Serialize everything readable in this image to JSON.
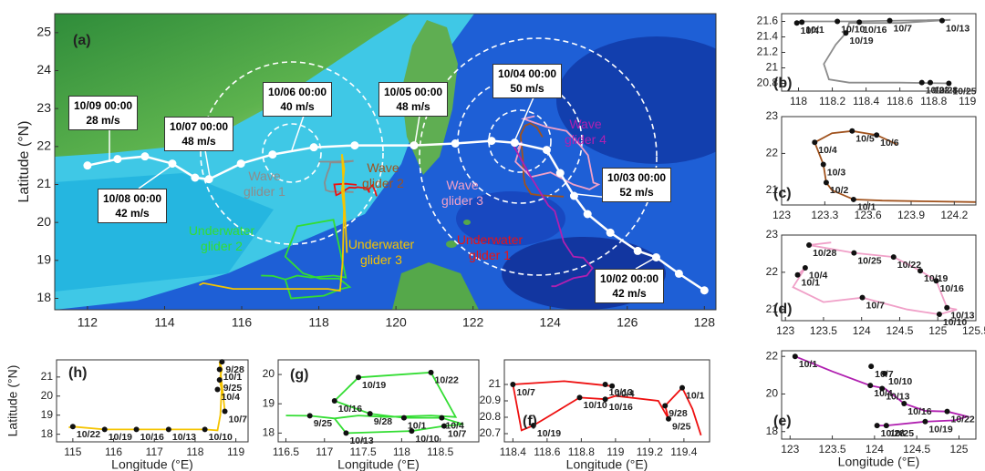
{
  "chart_data": [
    {
      "type": "map",
      "label": "(a)",
      "ylabel": "Latitude (°N)",
      "xlim": [
        111.15,
        128.3
      ],
      "xticks": [
        112,
        114,
        116,
        118,
        120,
        122,
        124,
        126,
        128
      ],
      "ylim": [
        17.7,
        25.5
      ],
      "yticks": [
        18,
        19,
        20,
        21,
        22,
        23,
        24,
        25
      ],
      "track": {
        "x": [
          112,
          112.78,
          113.49,
          114.2,
          114.79,
          115.15,
          115.98,
          116.8,
          117.87,
          118.93,
          120.47,
          121.54,
          122.48,
          123.08,
          123.91,
          124.26,
          124.62,
          124.97,
          125.56,
          126.27,
          126.75,
          127.34,
          128.0
        ],
        "y": [
          21.5,
          21.67,
          21.74,
          21.55,
          21.18,
          21.14,
          21.55,
          21.79,
          21.98,
          22.03,
          22.03,
          22.08,
          22.15,
          22.1,
          21.91,
          21.3,
          20.7,
          20.22,
          19.73,
          19.25,
          19.08,
          18.65,
          18.21
        ]
      },
      "annotations": [
        {
          "time": "10/09 00:00",
          "speed": "28 m/s"
        },
        {
          "time": "10/08 00:00",
          "speed": "42 m/s"
        },
        {
          "time": "10/07 00:00",
          "speed": "48 m/s"
        },
        {
          "time": "10/06 00:00",
          "speed": "40 m/s"
        },
        {
          "time": "10/05 00:00",
          "speed": "48 m/s"
        },
        {
          "time": "10/04 00:00",
          "speed": "50 m/s"
        },
        {
          "time": "10/03 00:00",
          "speed": "52 m/s"
        },
        {
          "time": "10/02 00:00",
          "speed": "42 m/s"
        }
      ],
      "series": [
        {
          "name": "Wave glider 1",
          "color": "#8c8c8c"
        },
        {
          "name": "Wave glider 2",
          "color": "#a0521d"
        },
        {
          "name": "Wave glider 3",
          "color": "#f0a0c8"
        },
        {
          "name": "Wave glider 4",
          "color": "#b020b0"
        },
        {
          "name": "Underwater glider 1",
          "color": "#ee1111"
        },
        {
          "name": "Underwater glider 2",
          "color": "#33dd33"
        },
        {
          "name": "Underwater glider 3",
          "color": "#f5c400"
        }
      ]
    },
    {
      "type": "line",
      "label": "(b)",
      "color": "#8c8c8c",
      "x": [
        118.0,
        118.3,
        118.6,
        118.9,
        118.6,
        118.3,
        118.28,
        118.22,
        118.15,
        118.18,
        118.3,
        118.6,
        118.9
      ],
      "y": [
        21.6,
        21.6,
        21.61,
        21.62,
        21.58,
        21.58,
        21.45,
        21.3,
        21.05,
        20.85,
        20.81,
        20.81,
        20.8
      ],
      "markers": [
        {
          "label": "10/1",
          "x": 118.02,
          "y": 21.59
        },
        {
          "label": "10/4",
          "x": 117.99,
          "y": 21.58
        },
        {
          "label": "10/10",
          "x": 118.23,
          "y": 21.6
        },
        {
          "label": "10/7",
          "x": 118.54,
          "y": 21.61
        },
        {
          "label": "10/16",
          "x": 118.36,
          "y": 21.59
        },
        {
          "label": "10/13",
          "x": 118.85,
          "y": 21.61
        },
        {
          "label": "10/19",
          "x": 118.28,
          "y": 21.45
        },
        {
          "label": "10/22",
          "x": 118.73,
          "y": 20.81
        },
        {
          "label": "10/28",
          "x": 118.78,
          "y": 20.81
        },
        {
          "label": "10/25",
          "x": 118.89,
          "y": 20.8
        }
      ],
      "xlim": [
        117.9,
        119.05
      ],
      "xticks": [
        118,
        118.2,
        118.4,
        118.6,
        118.8,
        119
      ],
      "ylim": [
        20.7,
        21.7
      ],
      "yticks": [
        20.8,
        21,
        21.2,
        21.4,
        21.6
      ]
    },
    {
      "type": "line",
      "label": "(c)",
      "color": "#a0521d",
      "x": [
        124.35,
        124.0,
        123.7,
        123.5,
        123.35,
        123.31,
        123.29,
        123.23,
        123.35,
        123.49,
        123.66,
        123.8
      ],
      "y": [
        20.68,
        20.7,
        20.72,
        20.75,
        21.0,
        21.21,
        21.7,
        22.3,
        22.55,
        22.61,
        22.5,
        22.25
      ],
      "markers": [
        {
          "label": "10/1",
          "x": 123.5,
          "y": 20.75
        },
        {
          "label": "10/2",
          "x": 123.31,
          "y": 21.21
        },
        {
          "label": "10/3",
          "x": 123.29,
          "y": 21.7
        },
        {
          "label": "10/4",
          "x": 123.23,
          "y": 22.3
        },
        {
          "label": "10/5",
          "x": 123.49,
          "y": 22.61
        },
        {
          "label": "10/6",
          "x": 123.66,
          "y": 22.5
        }
      ],
      "xlim": [
        123,
        124.35
      ],
      "xticks": [
        123,
        123.3,
        123.6,
        123.9,
        124.2
      ],
      "ylim": [
        20.6,
        23
      ],
      "yticks": [
        21,
        22,
        23
      ]
    },
    {
      "type": "line",
      "label": "(d)",
      "color": "#f0a0c8",
      "x": [
        123.16,
        123.26,
        123.1,
        123.5,
        124.01,
        124.6,
        125.02,
        125.25,
        125.12,
        124.98,
        124.77,
        124.42,
        123.9,
        123.31,
        123.6
      ],
      "y": [
        21.93,
        22.12,
        21.6,
        21.2,
        21.32,
        21.0,
        20.87,
        21.0,
        21.05,
        21.77,
        22.04,
        22.41,
        22.52,
        22.73,
        22.8
      ],
      "markers": [
        {
          "label": "10/1",
          "x": 123.16,
          "y": 21.93
        },
        {
          "label": "10/4",
          "x": 123.26,
          "y": 22.12
        },
        {
          "label": "10/7",
          "x": 124.01,
          "y": 21.32
        },
        {
          "label": "10/10",
          "x": 125.02,
          "y": 20.87
        },
        {
          "label": "10/13",
          "x": 125.12,
          "y": 21.05
        },
        {
          "label": "10/16",
          "x": 124.98,
          "y": 21.77
        },
        {
          "label": "10/19",
          "x": 124.77,
          "y": 22.04
        },
        {
          "label": "10/22",
          "x": 124.42,
          "y": 22.41
        },
        {
          "label": "10/25",
          "x": 123.9,
          "y": 22.52
        },
        {
          "label": "10/28",
          "x": 123.31,
          "y": 22.73
        }
      ],
      "xlim": [
        122.95,
        125.5
      ],
      "xticks": [
        123,
        123.5,
        124,
        124.5,
        125,
        125.5
      ],
      "ylim": [
        20.7,
        23
      ],
      "yticks": [
        21,
        22,
        23
      ]
    },
    {
      "type": "line",
      "label": "(e)",
      "color": "#b020b0",
      "xlabel": "Longitude (°E)",
      "x": [
        123.06,
        123.5,
        123.95,
        124.12,
        124.35,
        124.6,
        124.86,
        125.1,
        124.95,
        124.6,
        124.14,
        124.03
      ],
      "y": [
        22.0,
        21.2,
        20.45,
        20.3,
        19.49,
        19.1,
        19.07,
        18.8,
        18.6,
        18.53,
        18.32,
        18.32
      ],
      "markers": [
        {
          "label": "10/1",
          "x": 123.06,
          "y": 22.0
        },
        {
          "label": "10/7",
          "x": 123.96,
          "y": 21.47
        },
        {
          "label": "10/10",
          "x": 124.12,
          "y": 21.09
        },
        {
          "label": "10/4",
          "x": 123.95,
          "y": 20.45
        },
        {
          "label": "10/13",
          "x": 124.09,
          "y": 20.29
        },
        {
          "label": "10/16",
          "x": 124.35,
          "y": 19.49
        },
        {
          "label": "10/22",
          "x": 124.86,
          "y": 19.07
        },
        {
          "label": "10/19",
          "x": 124.6,
          "y": 18.53
        },
        {
          "label": "10/25",
          "x": 124.14,
          "y": 18.32
        },
        {
          "label": "10/28",
          "x": 124.03,
          "y": 18.32
        }
      ],
      "xlim": [
        122.9,
        125.2
      ],
      "xticks": [
        123,
        123.5,
        124,
        124.5,
        125
      ],
      "ylim": [
        17.6,
        22.3
      ],
      "yticks": [
        18,
        20,
        22
      ]
    },
    {
      "type": "line",
      "label": "(f)",
      "color": "#ee1111",
      "xlabel": "Longitude (°E)",
      "x": [
        119.5,
        119.45,
        119.39,
        119.29,
        119.31,
        119.25,
        119.0,
        118.94,
        118.79,
        118.6,
        118.52,
        118.45,
        118.4,
        118.7,
        118.98
      ],
      "y": [
        20.69,
        20.85,
        20.98,
        20.87,
        20.79,
        20.9,
        20.93,
        20.91,
        20.92,
        20.8,
        20.75,
        20.72,
        21.0,
        21.02,
        20.99
      ],
      "markers": [
        {
          "label": "10/7",
          "x": 118.4,
          "y": 21.0
        },
        {
          "label": "10/13",
          "x": 118.94,
          "y": 21.0
        },
        {
          "label": "10/4",
          "x": 118.98,
          "y": 20.99
        },
        {
          "label": "10/10",
          "x": 118.79,
          "y": 20.92
        },
        {
          "label": "10/16",
          "x": 118.94,
          "y": 20.91
        },
        {
          "label": "10/19",
          "x": 118.52,
          "y": 20.75
        },
        {
          "label": "10/1",
          "x": 119.39,
          "y": 20.98
        },
        {
          "label": "9/28",
          "x": 119.29,
          "y": 20.87
        },
        {
          "label": "9/25",
          "x": 119.31,
          "y": 20.79
        }
      ],
      "xlim": [
        118.35,
        119.55
      ],
      "xticks": [
        118.4,
        118.6,
        118.8,
        119,
        119.2,
        119.4
      ],
      "ylim": [
        20.65,
        21.15
      ],
      "yticks": [
        20.7,
        20.8,
        20.9,
        21
      ]
    },
    {
      "type": "line",
      "label": "(g)",
      "color": "#33dd33",
      "xlabel": "Longitude (°E)",
      "x": [
        116.5,
        116.81,
        117.13,
        117.44,
        117.8,
        118.38,
        118.7,
        118.38,
        117.44,
        117.13,
        117.59,
        118.03,
        118.52,
        118.8,
        118.55,
        118.13,
        117.28,
        117.13
      ],
      "y": [
        18.6,
        18.59,
        18.5,
        18.6,
        18.55,
        18.6,
        18.55,
        20.07,
        19.9,
        19.1,
        18.66,
        18.52,
        18.52,
        18.3,
        18.24,
        18.07,
        18.0,
        18.5
      ],
      "markers": [
        {
          "label": "10/22",
          "x": 118.38,
          "y": 20.07
        },
        {
          "label": "10/19",
          "x": 117.44,
          "y": 19.9
        },
        {
          "label": "10/16",
          "x": 117.13,
          "y": 19.1
        },
        {
          "label": "9/28",
          "x": 117.59,
          "y": 18.66
        },
        {
          "label": "10/1",
          "x": 118.03,
          "y": 18.52
        },
        {
          "label": "10/4",
          "x": 118.52,
          "y": 18.52
        },
        {
          "label": "9/25",
          "x": 116.81,
          "y": 18.59
        },
        {
          "label": "10/13",
          "x": 117.28,
          "y": 18.0
        },
        {
          "label": "10/10",
          "x": 118.13,
          "y": 18.07
        },
        {
          "label": "10/7",
          "x": 118.55,
          "y": 18.24
        }
      ],
      "xlim": [
        116.4,
        119.0
      ],
      "xticks": [
        116.5,
        117,
        117.5,
        118,
        118.5
      ],
      "ylim": [
        17.7,
        20.5
      ],
      "yticks": [
        18,
        19,
        20
      ]
    },
    {
      "type": "line",
      "label": "(h)",
      "color": "#f5c400",
      "xlabel": "Longitude (°E)",
      "ylabel": "Latitude (°N)",
      "x": [
        114.9,
        115.0,
        115.78,
        116.56,
        117.35,
        118.24,
        118.55,
        118.62,
        118.65,
        118.6,
        118.66,
        118.6,
        118.73
      ],
      "y": [
        18.35,
        18.4,
        18.25,
        18.25,
        18.25,
        18.25,
        18.2,
        19.0,
        20.35,
        20.85,
        21.4,
        21.8,
        19.2
      ],
      "markers": [
        {
          "label": "9/28",
          "x": 118.66,
          "y": 21.8
        },
        {
          "label": "10/1",
          "x": 118.6,
          "y": 21.4
        },
        {
          "label": "9/25",
          "x": 118.6,
          "y": 20.85
        },
        {
          "label": "10/4",
          "x": 118.55,
          "y": 20.35
        },
        {
          "label": "10/7",
          "x": 118.73,
          "y": 19.2
        },
        {
          "label": "10/10",
          "x": 118.24,
          "y": 18.25
        },
        {
          "label": "10/13",
          "x": 117.35,
          "y": 18.25
        },
        {
          "label": "10/16",
          "x": 116.56,
          "y": 18.25
        },
        {
          "label": "10/19",
          "x": 115.78,
          "y": 18.25
        },
        {
          "label": "10/22",
          "x": 115.0,
          "y": 18.4
        }
      ],
      "xlim": [
        114.6,
        119.3
      ],
      "xticks": [
        115,
        116,
        117,
        118,
        119
      ],
      "ylim": [
        17.6,
        21.9
      ],
      "yticks": [
        18,
        19,
        20,
        21
      ]
    }
  ]
}
